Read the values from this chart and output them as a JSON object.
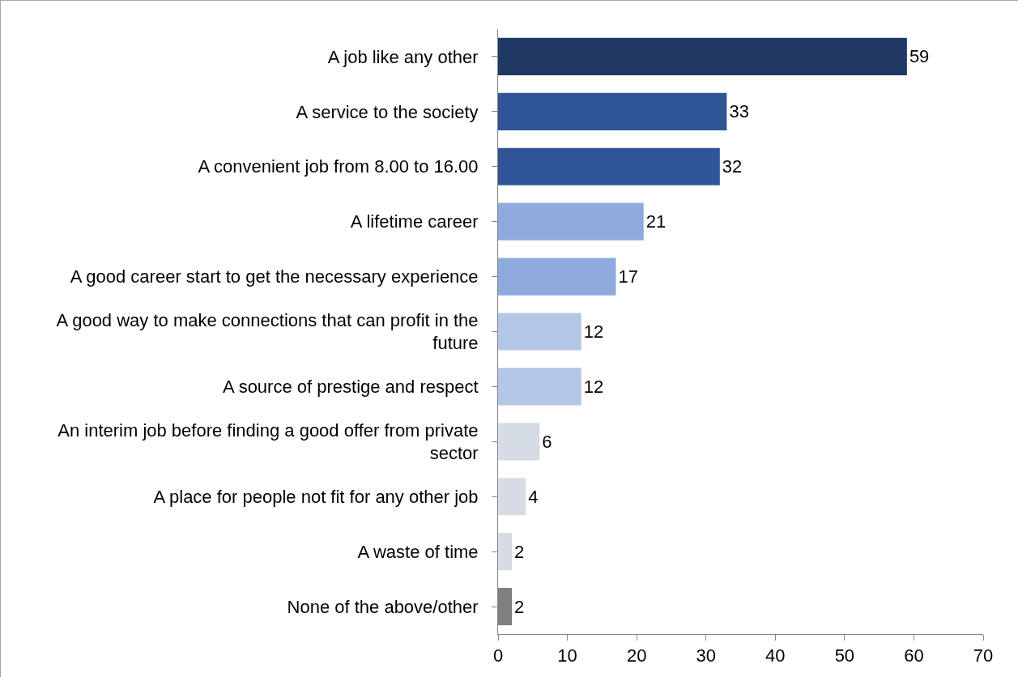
{
  "chart_data": {
    "type": "bar",
    "orientation": "horizontal",
    "categories": [
      "A job like any other",
      "A service to the society",
      "A convenient job from 8.00 to 16.00",
      "A lifetime career",
      "A good career start to get the necessary experience",
      "A good way to make connections that can profit in the future",
      "A source of prestige and respect",
      "An interim job before finding a good offer from private sector",
      "A place for people not fit for any other job",
      "A waste of time",
      "None of the above/other"
    ],
    "values": [
      59,
      33,
      32,
      21,
      17,
      12,
      12,
      6,
      4,
      2,
      2
    ],
    "colors": [
      "#203864",
      "#2f5597",
      "#2f5597",
      "#8faadc",
      "#8faadc",
      "#b4c7e7",
      "#b4c7e7",
      "#d6dce5",
      "#d6dce5",
      "#d6dce5",
      "#7f7f7f"
    ],
    "xlim": [
      0,
      70
    ],
    "xticks": [
      0,
      10,
      20,
      30,
      40,
      50,
      60,
      70
    ],
    "data_labels": true
  }
}
